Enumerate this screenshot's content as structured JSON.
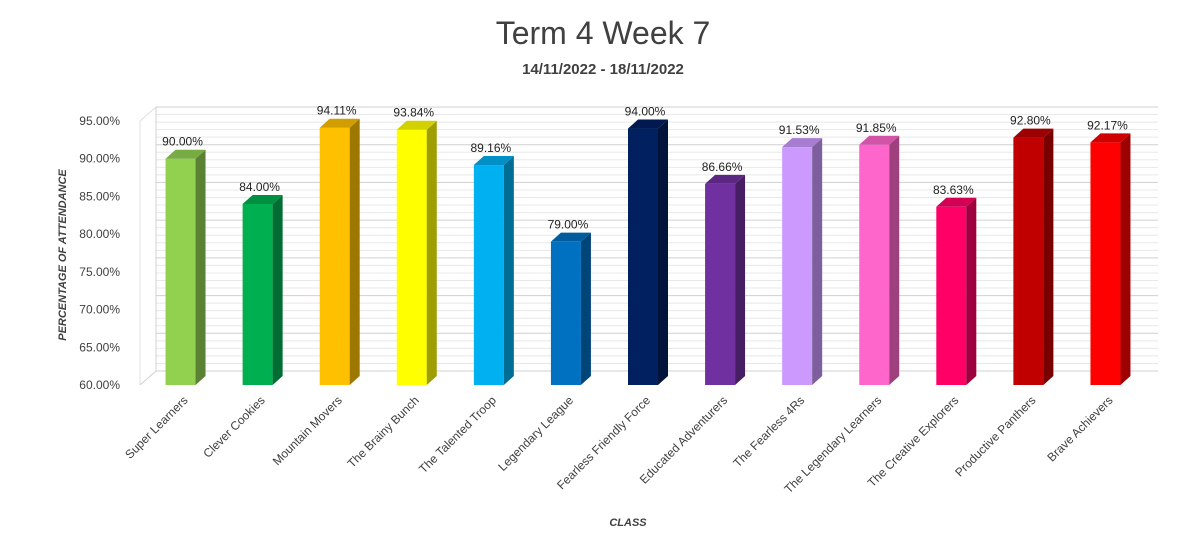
{
  "chart_data": {
    "type": "bar",
    "title": "Term 4 Week 7",
    "subtitle": "14/11/2022 - 18/11/2022",
    "xlabel": "CLASS",
    "ylabel": "PERCENTAGE OF ATTENDANCE",
    "ylim": [
      60,
      95
    ],
    "yticks": [
      "60.00%",
      "65.00%",
      "70.00%",
      "75.00%",
      "80.00%",
      "85.00%",
      "90.00%",
      "95.00%"
    ],
    "categories": [
      "Super Learners",
      "Clever Cookies",
      "Mountain Movers",
      "The Brainy Bunch",
      "The Talented Troop",
      "Legendary League",
      "Fearless Friendly Force",
      "Educated Adventurers",
      "The Fearless 4Rs",
      "The Legendary Learners",
      "The Creative Explorers",
      "Productive Panthers",
      "Brave Achievers"
    ],
    "values": [
      90.0,
      84.0,
      94.11,
      93.84,
      89.16,
      79.0,
      94.0,
      86.66,
      91.53,
      91.85,
      83.63,
      92.8,
      92.17
    ],
    "data_labels": [
      "90.00%",
      "84.00%",
      "94.11%",
      "93.84%",
      "89.16%",
      "79.00%",
      "94.00%",
      "86.66%",
      "91.53%",
      "91.85%",
      "83.63%",
      "92.80%",
      "92.17%"
    ],
    "colors": [
      "#92d050",
      "#00b050",
      "#ffc000",
      "#ffff00",
      "#00b0f0",
      "#0070c0",
      "#002060",
      "#7030a0",
      "#cc99ff",
      "#ff66cc",
      "#ff0066",
      "#c00000",
      "#ff0000"
    ],
    "grid": true,
    "legend": "none"
  }
}
